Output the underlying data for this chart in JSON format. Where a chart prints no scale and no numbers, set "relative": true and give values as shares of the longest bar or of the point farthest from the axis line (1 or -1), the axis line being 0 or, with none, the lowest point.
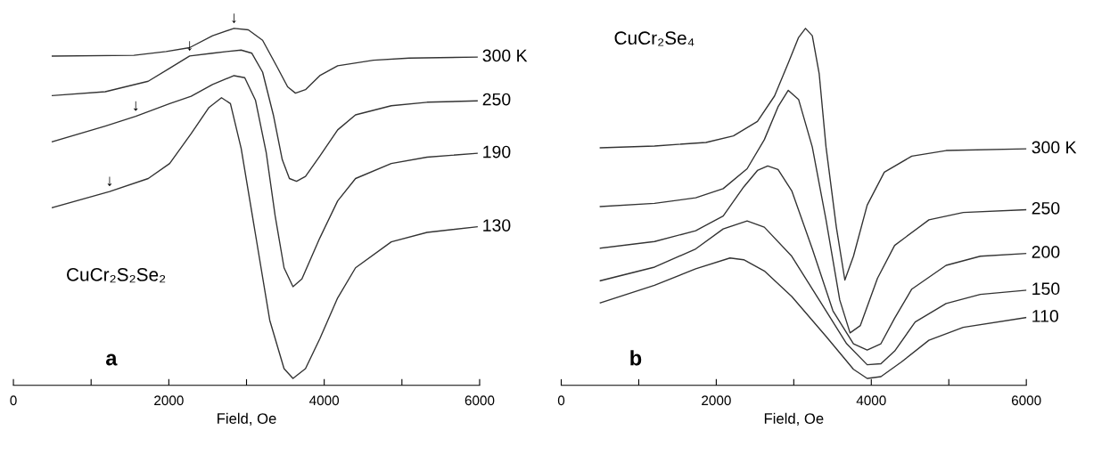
{
  "chart_data": [
    {
      "type": "line",
      "relative": true,
      "xlabel": "Field, Oe",
      "xlim": [
        0,
        6000
      ],
      "xticks": [
        0,
        {
          "value": 1000,
          "label": null
        },
        2000,
        {
          "value": 3000,
          "label": null
        },
        4000,
        {
          "value": 5000,
          "label": null
        },
        6000
      ],
      "grid": false,
      "legend": false,
      "marker": "none",
      "line_style": "solid",
      "annotations": [
        "CuCr₂S₂Se₂",
        "a",
        {
          "text": "↓",
          "x": 2839,
          "y": 1.0
        },
        {
          "text": "↓",
          "x": 2268,
          "y": 0.921
        },
        {
          "text": "↓",
          "x": 1574,
          "y": 0.749
        },
        {
          "text": "↓",
          "x": 1238,
          "y": 0.534
        }
      ],
      "series": [
        {
          "name": "300 K",
          "color": "#333333",
          "x": [
            501,
            1551,
            1965,
            2268,
            2563,
            2839,
            3023,
            3207,
            3391,
            3529,
            3630,
            3759,
            3943,
            4173,
            4633,
            5093,
            5968
          ],
          "values": [
            0.921,
            0.923,
            0.934,
            0.945,
            0.979,
            1.0,
            0.996,
            0.966,
            0.891,
            0.833,
            0.815,
            0.825,
            0.865,
            0.893,
            0.909,
            0.915,
            0.918
          ]
        },
        {
          "name": "250",
          "color": "#333333",
          "x": [
            501,
            1182,
            1735,
            2011,
            2268,
            2563,
            2747,
            2931,
            3069,
            3207,
            3345,
            3460,
            3552,
            3644,
            3759,
            3943,
            4173,
            4403,
            4863,
            5323,
            5968
          ],
          "values": [
            0.808,
            0.819,
            0.849,
            0.886,
            0.921,
            0.929,
            0.934,
            0.938,
            0.929,
            0.875,
            0.753,
            0.625,
            0.571,
            0.563,
            0.577,
            0.635,
            0.71,
            0.753,
            0.779,
            0.789,
            0.793
          ]
        },
        {
          "name": "190",
          "color": "#333333",
          "x": [
            501,
            1182,
            1574,
            2011,
            2287,
            2563,
            2839,
            2977,
            3115,
            3253,
            3368,
            3483,
            3598,
            3713,
            3943,
            4173,
            4403,
            4863,
            5323,
            5968
          ],
          "values": [
            0.676,
            0.721,
            0.749,
            0.785,
            0.806,
            0.84,
            0.865,
            0.859,
            0.795,
            0.646,
            0.465,
            0.316,
            0.262,
            0.284,
            0.401,
            0.507,
            0.571,
            0.614,
            0.632,
            0.643
          ]
        },
        {
          "name": "130",
          "color": "#333333",
          "x": [
            501,
            1238,
            1735,
            2011,
            2287,
            2517,
            2678,
            2793,
            2931,
            3115,
            3299,
            3483,
            3598,
            3759,
            3943,
            4173,
            4403,
            4863,
            5323,
            5968
          ],
          "values": [
            0.488,
            0.534,
            0.571,
            0.614,
            0.699,
            0.774,
            0.802,
            0.785,
            0.657,
            0.412,
            0.166,
            0.028,
            0.0,
            0.028,
            0.113,
            0.23,
            0.316,
            0.39,
            0.417,
            0.433
          ]
        }
      ]
    },
    {
      "type": "line",
      "relative": true,
      "xlabel": "Field, Oe",
      "xlim": [
        0,
        6000
      ],
      "xticks": [
        0,
        {
          "value": 1000,
          "label": null
        },
        2000,
        {
          "value": 3000,
          "label": null
        },
        4000,
        {
          "value": 5000,
          "label": null
        },
        6000
      ],
      "grid": false,
      "legend": false,
      "marker": "none",
      "line_style": "solid",
      "annotations": [
        "CuCr₂Se₄",
        "b"
      ],
      "series": [
        {
          "name": "300 K",
          "color": "#333333",
          "x": [
            504,
            1204,
            1867,
            2221,
            2531,
            2752,
            2929,
            3062,
            3151,
            3239,
            3328,
            3416,
            3549,
            3659,
            3770,
            3947,
            4168,
            4522,
            4965,
            6000
          ],
          "values": [
            0.659,
            0.664,
            0.674,
            0.693,
            0.734,
            0.807,
            0.901,
            0.974,
            1.0,
            0.979,
            0.87,
            0.661,
            0.432,
            0.281,
            0.349,
            0.495,
            0.589,
            0.635,
            0.651,
            0.656
          ]
        },
        {
          "name": "250",
          "color": "#333333",
          "x": [
            504,
            1204,
            1735,
            2089,
            2398,
            2620,
            2797,
            2929,
            3062,
            3239,
            3416,
            3593,
            3726,
            3859,
            4080,
            4301,
            4744,
            5186,
            6000
          ],
          "values": [
            0.491,
            0.5,
            0.516,
            0.542,
            0.599,
            0.682,
            0.776,
            0.823,
            0.797,
            0.661,
            0.453,
            0.224,
            0.13,
            0.151,
            0.286,
            0.38,
            0.453,
            0.474,
            0.482
          ]
        },
        {
          "name": "200",
          "color": "#333333",
          "x": [
            504,
            1204,
            1735,
            2089,
            2354,
            2531,
            2664,
            2797,
            2974,
            3239,
            3505,
            3770,
            3947,
            4124,
            4301,
            4522,
            4965,
            5407,
            6000
          ],
          "values": [
            0.372,
            0.391,
            0.422,
            0.464,
            0.547,
            0.594,
            0.607,
            0.597,
            0.536,
            0.37,
            0.193,
            0.099,
            0.081,
            0.099,
            0.172,
            0.255,
            0.323,
            0.349,
            0.357
          ]
        },
        {
          "name": "150",
          "color": "#333333",
          "x": [
            504,
            1204,
            1735,
            2089,
            2398,
            2620,
            2974,
            3328,
            3682,
            3947,
            4124,
            4301,
            4566,
            4965,
            5407,
            6000
          ],
          "values": [
            0.279,
            0.318,
            0.37,
            0.427,
            0.45,
            0.432,
            0.349,
            0.224,
            0.099,
            0.039,
            0.042,
            0.078,
            0.161,
            0.214,
            0.24,
            0.252
          ]
        },
        {
          "name": "110",
          "color": "#333333",
          "x": [
            504,
            1204,
            1735,
            2177,
            2354,
            2620,
            2974,
            3416,
            3770,
            3947,
            4124,
            4389,
            4743,
            5186,
            6000
          ],
          "values": [
            0.216,
            0.266,
            0.313,
            0.344,
            0.339,
            0.307,
            0.234,
            0.12,
            0.026,
            0.0,
            0.005,
            0.047,
            0.109,
            0.146,
            0.174
          ]
        }
      ]
    }
  ]
}
